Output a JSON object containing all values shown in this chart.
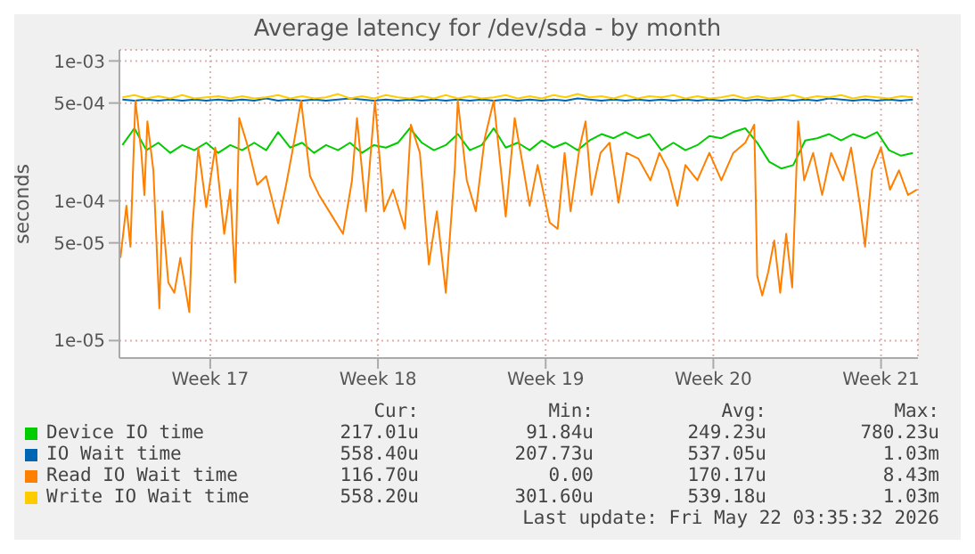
{
  "chart_data": {
    "type": "line",
    "title": "Average latency for /dev/sda - by month",
    "ylabel": "seconds",
    "log": true,
    "grid": true,
    "legend": "bottom",
    "marker": "none",
    "line_style": "solid",
    "xlim": [
      "2026-04-19T17:00",
      "2026-05-23T01:00"
    ],
    "xticks": [
      {
        "value": "2026-04-23T12:00",
        "label": "Week 17"
      },
      {
        "value": "2026-04-30T12:00",
        "label": "Week 18"
      },
      {
        "value": "2026-05-07T12:00",
        "label": "Week 19"
      },
      {
        "value": "2026-05-14T12:00",
        "label": "Week 20"
      },
      {
        "value": "2026-05-21T12:00",
        "label": "Week 21"
      }
    ],
    "ylim": [
      7.5e-06,
      0.0012
    ],
    "yticks": [
      {
        "value": 1e-05,
        "label": "1e-05"
      },
      {
        "value": 5e-05,
        "label": "5e-05"
      },
      {
        "value": 0.0001,
        "label": "1e-04"
      },
      {
        "value": 0.0005,
        "label": "5e-04"
      },
      {
        "value": 0.001,
        "label": "1e-03"
      }
    ],
    "x": [
      "2026-04-19T20:00",
      "2026-04-20T08:00",
      "2026-04-20T20:00",
      "2026-04-21T08:00",
      "2026-04-21T20:00",
      "2026-04-22T08:00",
      "2026-04-22T20:00",
      "2026-04-23T08:00",
      "2026-04-23T20:00",
      "2026-04-24T08:00",
      "2026-04-24T20:00",
      "2026-04-25T08:00",
      "2026-04-25T20:00",
      "2026-04-26T08:00",
      "2026-04-26T20:00",
      "2026-04-27T08:00",
      "2026-04-27T20:00",
      "2026-04-28T08:00",
      "2026-04-28T20:00",
      "2026-04-29T08:00",
      "2026-04-29T20:00",
      "2026-04-30T08:00",
      "2026-04-30T20:00",
      "2026-05-01T08:00",
      "2026-05-01T20:00",
      "2026-05-02T08:00",
      "2026-05-02T20:00",
      "2026-05-03T08:00",
      "2026-05-03T20:00",
      "2026-05-04T08:00",
      "2026-05-04T20:00",
      "2026-05-05T08:00",
      "2026-05-05T20:00",
      "2026-05-06T08:00",
      "2026-05-06T20:00",
      "2026-05-07T08:00",
      "2026-05-07T20:00",
      "2026-05-08T08:00",
      "2026-05-08T20:00",
      "2026-05-09T08:00",
      "2026-05-09T20:00",
      "2026-05-10T08:00",
      "2026-05-10T20:00",
      "2026-05-11T08:00",
      "2026-05-11T20:00",
      "2026-05-12T08:00",
      "2026-05-12T20:00",
      "2026-05-13T08:00",
      "2026-05-13T20:00",
      "2026-05-14T08:00",
      "2026-05-14T20:00",
      "2026-05-15T08:00",
      "2026-05-15T20:00",
      "2026-05-16T08:00",
      "2026-05-16T20:00",
      "2026-05-17T08:00",
      "2026-05-17T20:00",
      "2026-05-18T08:00",
      "2026-05-18T20:00",
      "2026-05-19T08:00",
      "2026-05-19T20:00",
      "2026-05-20T08:00",
      "2026-05-20T20:00",
      "2026-05-21T08:00",
      "2026-05-21T20:00",
      "2026-05-22T08:00",
      "2026-05-22T20:00"
    ],
    "series": [
      {
        "name": "Device IO time",
        "color": "#00cc00",
        "values": [
          0.00025,
          0.00033,
          0.00023,
          0.00026,
          0.00022,
          0.00025,
          0.00023,
          0.00026,
          0.00022,
          0.00025,
          0.00023,
          0.00026,
          0.00023,
          0.00031,
          0.00024,
          0.00026,
          0.00022,
          0.00025,
          0.00023,
          0.00026,
          0.00022,
          0.00025,
          0.00024,
          0.00026,
          0.00033,
          0.00026,
          0.00023,
          0.00025,
          0.0003,
          0.00023,
          0.00025,
          0.00033,
          0.00024,
          0.00026,
          0.00023,
          0.00027,
          0.00024,
          0.00026,
          0.00023,
          0.00027,
          0.0003,
          0.00028,
          0.00031,
          0.00028,
          0.0003,
          0.00023,
          0.00026,
          0.00023,
          0.00025,
          0.00029,
          0.00028,
          0.00031,
          0.00033,
          0.00026,
          0.00019,
          0.00017,
          0.00018,
          0.00027,
          0.00028,
          0.0003,
          0.00027,
          0.0003,
          0.00028,
          0.00031,
          0.00023,
          0.00021,
          0.00022
        ]
      },
      {
        "name": "IO Wait time",
        "color": "#0066b3",
        "values": [
          0.00053,
          0.00052,
          0.00053,
          0.00052,
          0.00053,
          0.00052,
          0.00053,
          0.00052,
          0.00053,
          0.00052,
          0.00053,
          0.00052,
          0.00054,
          0.00052,
          0.00053,
          0.00052,
          0.00053,
          0.00052,
          0.00053,
          0.00054,
          0.00053,
          0.00052,
          0.00053,
          0.00052,
          0.00053,
          0.00052,
          0.00053,
          0.00052,
          0.00053,
          0.00052,
          0.00053,
          0.00052,
          0.00053,
          0.00052,
          0.00053,
          0.00052,
          0.00053,
          0.00052,
          0.00054,
          0.00053,
          0.00052,
          0.00053,
          0.00052,
          0.00053,
          0.00052,
          0.00053,
          0.00052,
          0.00053,
          0.00052,
          0.00053,
          0.00052,
          0.00053,
          0.00052,
          0.00053,
          0.00052,
          0.00053,
          0.00052,
          0.00053,
          0.00052,
          0.00054,
          0.00053,
          0.00052,
          0.00053,
          0.00052,
          0.00053,
          0.00052,
          0.00053
        ]
      },
      {
        "name": "Read IO Wait time",
        "color": "#ff8000",
        "x": [
          "2026-04-19T18:00",
          "2026-04-20T00:00",
          "2026-04-20T04:00",
          "2026-04-20T09:00",
          "2026-04-20T15:00",
          "2026-04-20T18:00",
          "2026-04-20T21:00",
          "2026-04-21T03:00",
          "2026-04-21T09:00",
          "2026-04-21T12:00",
          "2026-04-21T18:00",
          "2026-04-22T00:00",
          "2026-04-22T06:00",
          "2026-04-22T15:00",
          "2026-04-22T18:00",
          "2026-04-23T00:00",
          "2026-04-23T08:00",
          "2026-04-23T17:00",
          "2026-04-24T02:00",
          "2026-04-24T08:00",
          "2026-04-24T13:00",
          "2026-04-24T17:00",
          "2026-04-25T02:00",
          "2026-04-25T11:00",
          "2026-04-25T20:00",
          "2026-04-26T08:00",
          "2026-04-26T16:00",
          "2026-04-26T22:00",
          "2026-04-27T07:00",
          "2026-04-27T16:00",
          "2026-04-28T01:00",
          "2026-04-28T13:00",
          "2026-04-29T01:00",
          "2026-04-29T10:00",
          "2026-04-29T15:00",
          "2026-04-30T00:00",
          "2026-04-30T09:00",
          "2026-04-30T18:00",
          "2026-05-01T03:00",
          "2026-05-01T15:00",
          "2026-05-01T21:00",
          "2026-05-02T06:00",
          "2026-05-02T15:00",
          "2026-05-02T23:00",
          "2026-05-03T08:00",
          "2026-05-03T17:00",
          "2026-05-03T20:00",
          "2026-05-04T05:00",
          "2026-05-04T14:00",
          "2026-05-04T23:00",
          "2026-05-05T08:00",
          "2026-05-05T20:00",
          "2026-05-06T05:00",
          "2026-05-06T14:00",
          "2026-05-06T20:00",
          "2026-05-07T04:00",
          "2026-05-07T16:00",
          "2026-05-08T00:00",
          "2026-05-08T07:00",
          "2026-05-08T13:00",
          "2026-05-08T22:00",
          "2026-05-09T04:00",
          "2026-05-09T10:00",
          "2026-05-09T19:00",
          "2026-05-10T04:00",
          "2026-05-10T13:00",
          "2026-05-10T21:00",
          "2026-05-11T09:00",
          "2026-05-11T21:00",
          "2026-05-12T06:00",
          "2026-05-12T15:00",
          "2026-05-13T00:00",
          "2026-05-13T08:00",
          "2026-05-13T20:00",
          "2026-05-14T08:00",
          "2026-05-14T20:00",
          "2026-05-15T08:00",
          "2026-05-15T20:00",
          "2026-05-16T05:00",
          "2026-05-16T08:00",
          "2026-05-16T13:00",
          "2026-05-16T19:00",
          "2026-05-17T01:00",
          "2026-05-17T07:00",
          "2026-05-17T13:00",
          "2026-05-17T19:00",
          "2026-05-18T01:00",
          "2026-05-18T07:00",
          "2026-05-18T16:00",
          "2026-05-19T01:00",
          "2026-05-19T10:00",
          "2026-05-19T22:00",
          "2026-05-20T06:00",
          "2026-05-20T15:00",
          "2026-05-20T20:00",
          "2026-05-21T03:00",
          "2026-05-21T12:00",
          "2026-05-21T21:00",
          "2026-05-22T06:00",
          "2026-05-22T15:00",
          "2026-05-23T00:00"
        ],
        "values": [
          3.9e-05,
          9.2e-05,
          4.7e-05,
          0.00052,
          0.00022,
          0.00011,
          0.00037,
          0.000165,
          1.7e-05,
          8.4e-05,
          2.6e-05,
          2.2e-05,
          3.9e-05,
          1.6e-05,
          6.3e-05,
          0.00024,
          9e-05,
          0.00024,
          5.8e-05,
          0.00012,
          2.6e-05,
          0.00039,
          0.00024,
          0.00013,
          0.00015,
          6.9e-05,
          0.00013,
          0.00022,
          0.00052,
          0.00015,
          0.00011,
          8e-05,
          5.8e-05,
          0.00014,
          0.00039,
          8.4e-05,
          0.00052,
          8.4e-05,
          0.00012,
          6.3e-05,
          0.00035,
          0.00022,
          3.5e-05,
          8.4e-05,
          2.2e-05,
          0.00017,
          0.00052,
          0.00014,
          8.4e-05,
          0.00028,
          0.00052,
          7.7e-05,
          0.00039,
          0.000165,
          9.2e-05,
          0.00018,
          7e-05,
          6.3e-05,
          0.00022,
          8.4e-05,
          0.00024,
          0.00037,
          0.00011,
          0.00022,
          0.00026,
          9.7e-05,
          0.00022,
          0.0002,
          0.00014,
          0.00022,
          0.000165,
          9.2e-05,
          0.00018,
          0.00014,
          0.00022,
          0.00014,
          0.00022,
          0.00026,
          0.00035,
          2.9e-05,
          2.1e-05,
          3.1e-05,
          5.2e-05,
          2.2e-05,
          5.8e-05,
          2.4e-05,
          0.00037,
          0.00014,
          0.00022,
          0.00011,
          0.00022,
          0.00014,
          0.00024,
          9.2e-05,
          4.7e-05,
          0.000165,
          0.00024,
          0.00012,
          0.000165,
          0.00011,
          0.00012
        ]
      },
      {
        "name": "Write IO Wait time",
        "color": "#ffcc00",
        "values": [
          0.00055,
          0.00057,
          0.00054,
          0.00056,
          0.00054,
          0.00057,
          0.00054,
          0.00055,
          0.00056,
          0.00054,
          0.00056,
          0.00054,
          0.00055,
          0.00057,
          0.00054,
          0.00056,
          0.00054,
          0.00055,
          0.00058,
          0.00054,
          0.00056,
          0.00054,
          0.00057,
          0.00055,
          0.00054,
          0.00056,
          0.00054,
          0.00057,
          0.00054,
          0.00056,
          0.00054,
          0.00055,
          0.00057,
          0.00054,
          0.00056,
          0.00054,
          0.00057,
          0.00055,
          0.00058,
          0.00055,
          0.00056,
          0.00054,
          0.00057,
          0.00054,
          0.00056,
          0.00055,
          0.00057,
          0.00054,
          0.00056,
          0.00054,
          0.00055,
          0.00057,
          0.00054,
          0.00056,
          0.00054,
          0.00055,
          0.00057,
          0.00054,
          0.00056,
          0.00055,
          0.00057,
          0.00054,
          0.00056,
          0.00055,
          0.00054,
          0.00056,
          0.00055
        ]
      }
    ],
    "annotations": [
      "Cur:",
      "Min:",
      "Avg:",
      "Max:",
      "217.01u",
      "91.84u",
      "249.23u",
      "780.23u",
      "558.40u",
      "207.73u",
      "537.05u",
      "1.03m",
      "116.70u",
      "0.00",
      "170.17u",
      "8.43m",
      "558.20u",
      "301.60u",
      "539.18u",
      "1.03m",
      "Last update: Fri May 22 03:35:32 2026"
    ]
  }
}
